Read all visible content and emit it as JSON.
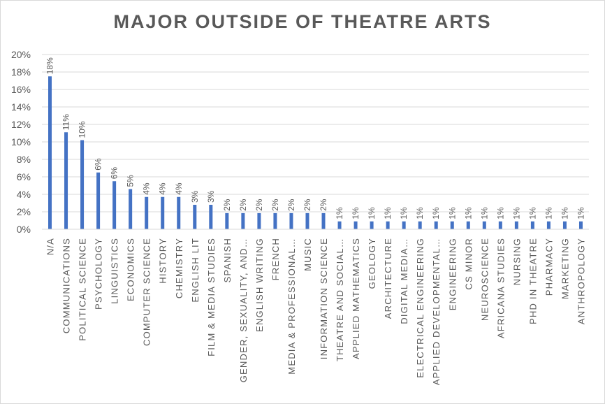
{
  "chart_data": {
    "type": "bar",
    "title": "MAJOR OUTSIDE OF THEATRE ARTS",
    "xlabel": "",
    "ylabel": "",
    "ylim": [
      0,
      20
    ],
    "y_ticks": [
      "0%",
      "2%",
      "4%",
      "6%",
      "8%",
      "10%",
      "12%",
      "14%",
      "16%",
      "18%",
      "20%"
    ],
    "grid": true,
    "legend": "none",
    "bar_color": "#4472c4",
    "categories": [
      "N/A",
      "COMMUNICATIONS",
      "POLITICAL SCIENCE",
      "PSYCHOLOGY",
      "LINGUISTICS",
      "ECONOMICS",
      "COMPUTER SCIENCE",
      "HISTORY",
      "CHEMISTRY",
      "ENGLISH LIT",
      "FILM & MEDIA STUDIES",
      "SPANISH",
      "GENDER, SEXUALITY, AND…",
      "ENGLISH WRITING",
      "FRENCH",
      "MEDIA & PROFESSIONAL…",
      "MUSIC",
      "INFORMATION SCIENCE",
      "THEATRE AND SOCIAL…",
      "APPLIED MATHEMATICS",
      "GEOLOGY",
      "ARCHITECTURE",
      "DIGITAL MEDIA…",
      "ELECTRICAL ENGINEERING",
      "APPLIED DEVELOPMENTAL…",
      "ENGINEERING",
      "CS MINOR",
      "NEUROSCIENCE",
      "AFRICANA STUDIES",
      "NURSING",
      "PHD IN THEATRE",
      "PHARMACY",
      "MARKETING",
      "ANTHROPOLOGY"
    ],
    "values": [
      17.5,
      11.1,
      10.2,
      6.5,
      5.5,
      4.6,
      3.7,
      3.7,
      3.7,
      2.8,
      2.8,
      1.85,
      1.85,
      1.85,
      1.85,
      1.85,
      1.85,
      1.85,
      0.9,
      0.9,
      0.9,
      0.9,
      0.9,
      0.9,
      0.9,
      0.9,
      0.9,
      0.9,
      0.9,
      0.9,
      0.9,
      0.9,
      0.9,
      0.9
    ],
    "data_labels": [
      "18%",
      "11%",
      "10%",
      "6%",
      "6%",
      "5%",
      "4%",
      "4%",
      "4%",
      "3%",
      "3%",
      "2%",
      "2%",
      "2%",
      "2%",
      "2%",
      "2%",
      "2%",
      "1%",
      "1%",
      "1%",
      "1%",
      "1%",
      "1%",
      "1%",
      "1%",
      "1%",
      "1%",
      "1%",
      "1%",
      "1%",
      "1%",
      "1%",
      "1%"
    ]
  }
}
